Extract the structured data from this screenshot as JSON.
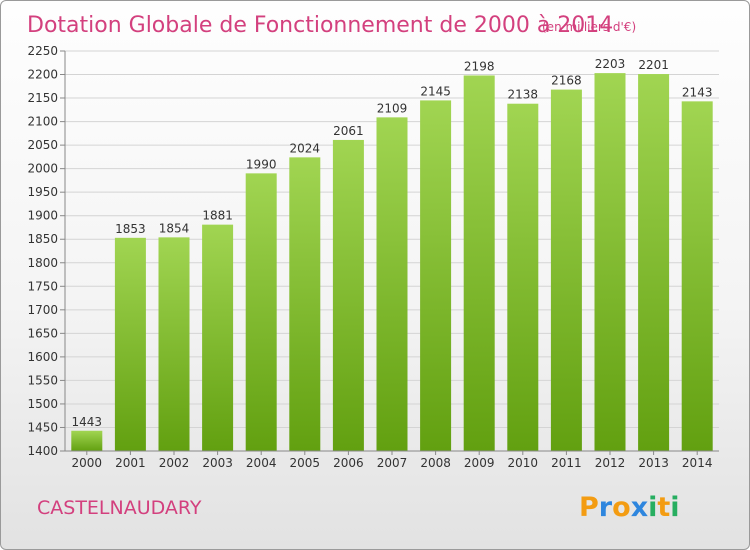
{
  "chart_data": {
    "type": "bar",
    "title": "Dotation Globale de Fonctionnement de 2000 à 2014",
    "subtitle": "(en milliers d'€)",
    "categories": [
      "2000",
      "2001",
      "2002",
      "2003",
      "2004",
      "2005",
      "2006",
      "2007",
      "2008",
      "2009",
      "2010",
      "2011",
      "2012",
      "2013",
      "2014"
    ],
    "values": [
      1443,
      1853,
      1854,
      1881,
      1990,
      2024,
      2061,
      2109,
      2145,
      2198,
      2138,
      2168,
      2203,
      2201,
      2143
    ],
    "ylim": [
      1400,
      2250
    ],
    "yticks": [
      1400,
      1450,
      1500,
      1550,
      1600,
      1650,
      1700,
      1750,
      1800,
      1850,
      1900,
      1950,
      2000,
      2050,
      2100,
      2150,
      2200,
      2250
    ],
    "grid": true,
    "bar_color_top": "#a1d552",
    "bar_color_bottom": "#62a010",
    "title_color": "#d3407e"
  },
  "commune": "CASTELNAUDARY",
  "logo": {
    "text": "Proxiti",
    "letters": [
      "P",
      "r",
      "o",
      "x",
      "i",
      "t",
      "i"
    ],
    "colors": [
      "#f39c12",
      "#2e86de",
      "#f39c12",
      "#2e86de",
      "#27ae60",
      "#f39c12",
      "#27ae60"
    ]
  }
}
